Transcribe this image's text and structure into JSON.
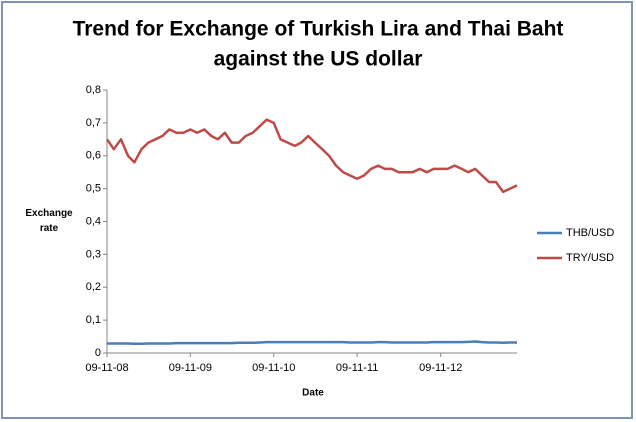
{
  "chart_data": {
    "type": "line",
    "title": [
      "Trend for Exchange of Turkish Lira and Thai Baht",
      "against the US dollar"
    ],
    "x_label": "Date",
    "y_label": "Exchange rate",
    "x": [
      "09-11-08",
      "09-12-08",
      "09-01-09",
      "09-02-09",
      "09-03-09",
      "09-04-09",
      "09-05-09",
      "09-06-09",
      "09-07-09",
      "09-08-09",
      "09-09-09",
      "09-10-09",
      "09-11-09",
      "09-12-09",
      "09-01-10",
      "09-02-10",
      "09-03-10",
      "09-04-10",
      "09-05-10",
      "09-06-10",
      "09-07-10",
      "09-08-10",
      "09-09-10",
      "09-10-10",
      "09-11-10",
      "09-12-10",
      "09-01-11",
      "09-02-11",
      "09-03-11",
      "09-04-11",
      "09-05-11",
      "09-06-11",
      "09-07-11",
      "09-08-11",
      "09-09-11",
      "09-10-11",
      "09-11-11",
      "09-12-11",
      "09-01-12",
      "09-02-12",
      "09-03-12",
      "09-04-12",
      "09-05-12",
      "09-06-12",
      "09-07-12",
      "09-08-12",
      "09-09-12",
      "09-10-12",
      "09-11-12",
      "09-12-12",
      "09-01-13",
      "09-02-13",
      "09-03-13",
      "09-04-13",
      "09-05-13",
      "09-06-13",
      "09-07-13",
      "09-08-13",
      "09-09-13",
      "09-10-13"
    ],
    "xlim": [
      "09-11-08",
      "09-10-13"
    ],
    "xticks": [
      "09-11-08",
      "09-11-09",
      "09-11-10",
      "09-11-11",
      "09-11-12"
    ],
    "ylim": [
      0,
      0.8
    ],
    "yticks": [
      0,
      {
        "value": 0.1,
        "label": "0,1"
      },
      {
        "value": 0.2,
        "label": "0,2"
      },
      {
        "value": 0.3,
        "label": "0,3"
      },
      {
        "value": 0.4,
        "label": "0,4"
      },
      {
        "value": 0.5,
        "label": "0,5"
      },
      {
        "value": 0.6,
        "label": "0,6"
      },
      {
        "value": 0.7,
        "label": "0,7"
      },
      {
        "value": 0.8,
        "label": "0,8"
      }
    ],
    "grid": false,
    "legend": "right",
    "series": [
      {
        "name": "THB/USD",
        "color": "#4a7ebb",
        "values": [
          0.029,
          0.029,
          0.029,
          0.029,
          0.028,
          0.028,
          0.029,
          0.029,
          0.029,
          0.029,
          0.03,
          0.03,
          0.03,
          0.03,
          0.03,
          0.03,
          0.03,
          0.03,
          0.03,
          0.031,
          0.031,
          0.031,
          0.032,
          0.033,
          0.033,
          0.033,
          0.033,
          0.033,
          0.033,
          0.033,
          0.033,
          0.033,
          0.033,
          0.033,
          0.033,
          0.032,
          0.032,
          0.032,
          0.032,
          0.033,
          0.033,
          0.032,
          0.032,
          0.032,
          0.032,
          0.032,
          0.032,
          0.033,
          0.033,
          0.033,
          0.033,
          0.033,
          0.034,
          0.035,
          0.033,
          0.032,
          0.032,
          0.031,
          0.032,
          0.032
        ]
      },
      {
        "name": "TRY/USD",
        "color": "#be4b48",
        "values": [
          0.65,
          0.62,
          0.65,
          0.6,
          0.58,
          0.62,
          0.64,
          0.65,
          0.66,
          0.68,
          0.67,
          0.67,
          0.68,
          0.67,
          0.68,
          0.66,
          0.65,
          0.67,
          0.64,
          0.64,
          0.66,
          0.67,
          0.69,
          0.71,
          0.7,
          0.65,
          0.64,
          0.63,
          0.64,
          0.66,
          0.64,
          0.62,
          0.6,
          0.57,
          0.55,
          0.54,
          0.53,
          0.54,
          0.56,
          0.57,
          0.56,
          0.56,
          0.55,
          0.55,
          0.55,
          0.56,
          0.55,
          0.56,
          0.56,
          0.56,
          0.57,
          0.56,
          0.55,
          0.56,
          0.54,
          0.52,
          0.52,
          0.49,
          0.5,
          0.51
        ]
      }
    ]
  }
}
